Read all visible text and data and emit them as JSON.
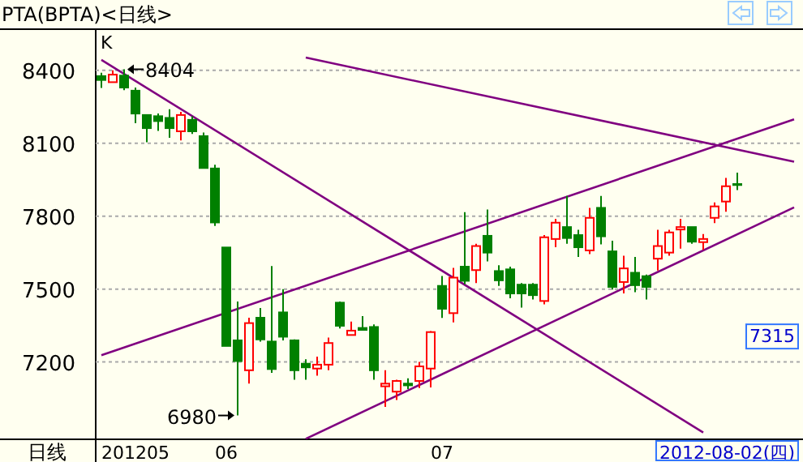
{
  "chart_data": {
    "type": "candlestick",
    "title": "PTA(BPTA)<日线>",
    "categories": [
      null,
      null,
      null,
      "201205",
      null,
      null,
      null,
      null,
      null,
      null,
      null,
      "06",
      null,
      null,
      null,
      null,
      null,
      null,
      null,
      null,
      null,
      null,
      null,
      null,
      null,
      null,
      null,
      null,
      null,
      null,
      "07",
      null,
      null,
      null,
      null,
      null,
      null,
      null,
      null,
      null,
      null,
      null,
      null,
      null,
      null,
      null,
      null,
      null,
      null,
      null,
      null,
      null,
      null,
      null,
      null,
      null,
      null,
      null,
      null,
      null,
      null,
      null
    ],
    "ohlc": [
      [
        8376,
        8390,
        8327,
        8360
      ],
      [
        8351,
        8400,
        8351,
        8382
      ],
      [
        8378,
        8404,
        8318,
        8329
      ],
      [
        8316,
        8329,
        8182,
        8222
      ],
      [
        8216,
        8216,
        8104,
        8162
      ],
      [
        8211,
        8222,
        8151,
        8191
      ],
      [
        8204,
        8240,
        8122,
        8162
      ],
      [
        8149,
        8229,
        8111,
        8216
      ],
      [
        8196,
        8211,
        8138,
        8149
      ],
      [
        8129,
        8144,
        7998,
        7998
      ],
      [
        7996,
        8011,
        7760,
        7774
      ],
      [
        7671,
        7671,
        7266,
        7266
      ],
      [
        7289,
        7449,
        6980,
        7204
      ],
      [
        7166,
        7382,
        7111,
        7360
      ],
      [
        7382,
        7422,
        7284,
        7293
      ],
      [
        7284,
        7595,
        7155,
        7171
      ],
      [
        7404,
        7500,
        7289,
        7304
      ],
      [
        7289,
        7293,
        7127,
        7166
      ],
      [
        7193,
        7211,
        7127,
        7178
      ],
      [
        7173,
        7222,
        7144,
        7189
      ],
      [
        7189,
        7300,
        7166,
        7278
      ],
      [
        7444,
        7449,
        7338,
        7349
      ],
      [
        7311,
        7366,
        7311,
        7329
      ],
      [
        7340,
        7389,
        7329,
        7332
      ],
      [
        7344,
        7355,
        7127,
        7166
      ],
      [
        7100,
        7166,
        7015,
        7111
      ],
      [
        7078,
        7127,
        7044,
        7122
      ],
      [
        7111,
        7133,
        7089,
        7104
      ],
      [
        7122,
        7200,
        7093,
        7182
      ],
      [
        7173,
        7327,
        7095,
        7323
      ],
      [
        7513,
        7554,
        7381,
        7419
      ],
      [
        7401,
        7587,
        7363,
        7547
      ],
      [
        7592,
        7816,
        7520,
        7534
      ],
      [
        7578,
        7686,
        7525,
        7677
      ],
      [
        7719,
        7827,
        7614,
        7650
      ],
      [
        7574,
        7598,
        7513,
        7536
      ],
      [
        7581,
        7592,
        7462,
        7482
      ],
      [
        7518,
        7525,
        7424,
        7482
      ],
      [
        7518,
        7525,
        7457,
        7475
      ],
      [
        7451,
        7722,
        7437,
        7713
      ],
      [
        7706,
        7789,
        7672,
        7773
      ],
      [
        7755,
        7883,
        7686,
        7710
      ],
      [
        7722,
        7744,
        7632,
        7672
      ],
      [
        7659,
        7834,
        7644,
        7793
      ],
      [
        7834,
        7883,
        7684,
        7717
      ],
      [
        7655,
        7699,
        7498,
        7509
      ],
      [
        7529,
        7637,
        7482,
        7585
      ],
      [
        7567,
        7632,
        7487,
        7516
      ],
      [
        7553,
        7560,
        7457,
        7509
      ],
      [
        7625,
        7744,
        7576,
        7677
      ],
      [
        7650,
        7744,
        7637,
        7733
      ],
      [
        7745,
        7789,
        7666,
        7755
      ],
      [
        7755,
        7755,
        7686,
        7695
      ],
      [
        7693,
        7726,
        7661,
        7706
      ],
      [
        7793,
        7856,
        7771,
        7840
      ],
      [
        7860,
        7957,
        7818,
        7923
      ],
      [
        7932,
        7979,
        7907,
        7928
      ],
      null,
      null,
      null,
      null,
      null
    ],
    "series": [
      {
        "type": "line",
        "color": "#800080",
        "values": [
          null,
          null,
          null,
          null,
          null,
          null,
          null,
          null,
          null,
          null,
          null,
          null,
          null,
          null,
          null,
          null,
          null,
          null,
          8452,
          null,
          null,
          null,
          null,
          null,
          null,
          null,
          null,
          null,
          null,
          null,
          null,
          null,
          null,
          null,
          null,
          null,
          null,
          null,
          null,
          null,
          null,
          null,
          null,
          null,
          null,
          null,
          null,
          null,
          null,
          null,
          null,
          null,
          null,
          null,
          null,
          null,
          null,
          null,
          null,
          null,
          null,
          8024
        ]
      },
      {
        "type": "line",
        "color": "#800080",
        "values": [
          8443,
          null,
          null,
          null,
          null,
          null,
          null,
          null,
          null,
          null,
          null,
          null,
          null,
          null,
          null,
          null,
          null,
          null,
          null,
          null,
          null,
          null,
          null,
          null,
          null,
          null,
          null,
          null,
          null,
          null,
          null,
          null,
          null,
          null,
          null,
          null,
          null,
          null,
          null,
          null,
          null,
          null,
          null,
          null,
          null,
          null,
          null,
          null,
          null,
          null,
          null,
          null,
          null,
          6910,
          null,
          null,
          null,
          null,
          null,
          null,
          null,
          null
        ]
      },
      {
        "type": "line",
        "color": "#800080",
        "values": [
          7228,
          null,
          null,
          null,
          null,
          null,
          null,
          null,
          null,
          null,
          null,
          null,
          null,
          null,
          null,
          null,
          null,
          null,
          null,
          null,
          null,
          null,
          null,
          null,
          null,
          null,
          null,
          null,
          null,
          null,
          null,
          null,
          null,
          null,
          null,
          null,
          null,
          null,
          null,
          null,
          null,
          null,
          null,
          null,
          null,
          null,
          null,
          null,
          null,
          null,
          null,
          null,
          null,
          null,
          null,
          null,
          null,
          null,
          null,
          null,
          null,
          8198
        ]
      },
      {
        "type": "line",
        "color": "#800080",
        "values": [
          null,
          null,
          null,
          null,
          null,
          null,
          null,
          null,
          null,
          null,
          null,
          null,
          null,
          null,
          null,
          null,
          null,
          null,
          6884,
          null,
          null,
          null,
          null,
          null,
          null,
          null,
          null,
          null,
          null,
          null,
          null,
          null,
          null,
          null,
          null,
          null,
          null,
          null,
          null,
          null,
          null,
          null,
          null,
          null,
          null,
          null,
          null,
          null,
          null,
          null,
          null,
          null,
          null,
          null,
          null,
          null,
          null,
          null,
          null,
          null,
          null,
          7836
        ]
      }
    ],
    "ylim": [
      6882,
      8569
    ],
    "yticks": [
      7200,
      7500,
      7800,
      8100,
      8400
    ],
    "grid": "y",
    "annotations": [
      "K",
      "8404",
      "6980",
      "日线",
      "2012-08-02(四)",
      {
        "text": "7315",
        "y": 7315
      }
    ]
  }
}
